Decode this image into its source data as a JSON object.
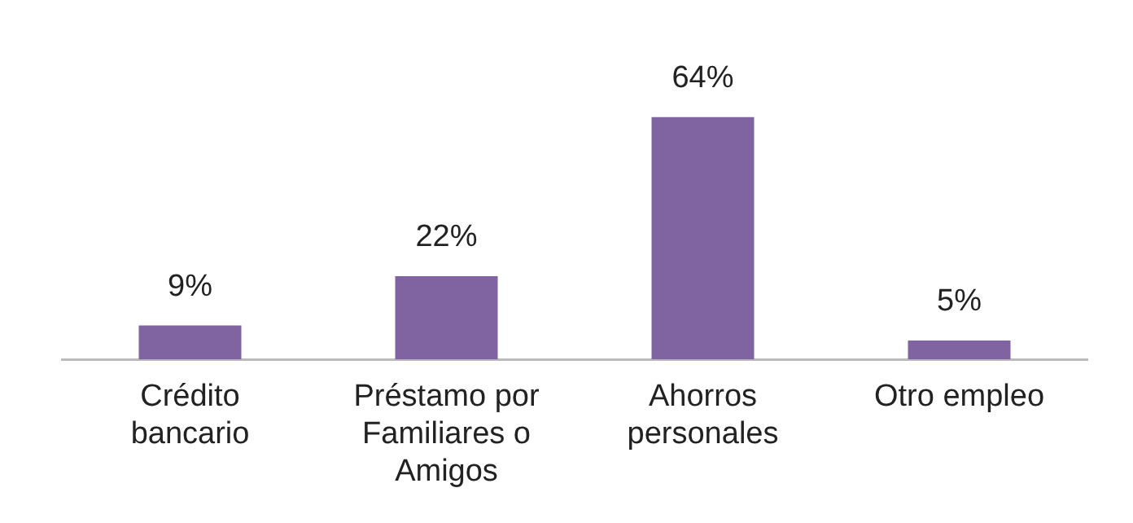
{
  "chart_data": {
    "type": "bar",
    "categories": [
      "Crédito bancario",
      "Préstamo por Familiares o Amigos",
      "Ahorros personales",
      "Otro empleo"
    ],
    "values": [
      9,
      22,
      64,
      5
    ],
    "value_labels": [
      "9%",
      "22%",
      "64%",
      "5%"
    ],
    "color": "#8064a2",
    "grid": false,
    "legend": false
  }
}
